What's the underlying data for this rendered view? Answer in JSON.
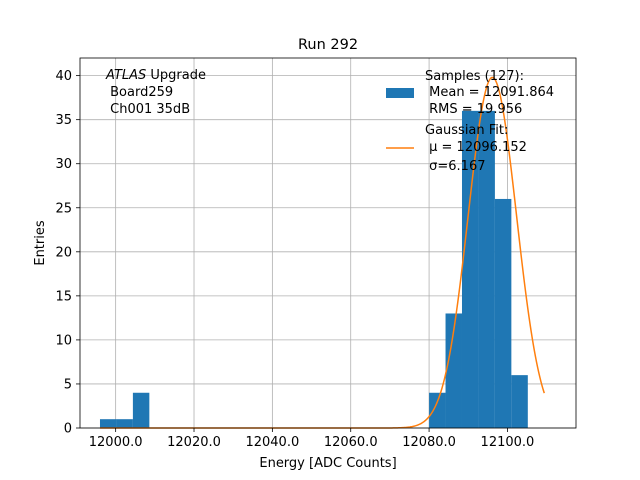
{
  "chart_data": {
    "type": "bar",
    "title": "Run 292",
    "xlabel": "Energy [ADC Counts]",
    "ylabel": "Entries",
    "xlim": [
      11990.9,
      12117.5
    ],
    "ylim": [
      0,
      42
    ],
    "grid": true,
    "x_ticks": [
      12000.0,
      12020.0,
      12040.0,
      12060.0,
      12080.0,
      12100.0
    ],
    "x_tick_labels": [
      "12000.0",
      "12020.0",
      "12040.0",
      "12060.0",
      "12080.0",
      "12100.0"
    ],
    "y_ticks": [
      0,
      5,
      10,
      15,
      20,
      25,
      30,
      35,
      40
    ],
    "y_tick_labels": [
      "0",
      "5",
      "10",
      "15",
      "20",
      "25",
      "30",
      "35",
      "40"
    ],
    "annotation": {
      "line1_italic": "ATLAS",
      "line1_rest": " Upgrade",
      "line2": " Board259",
      "line3": " Ch001 35dB"
    },
    "histogram": {
      "name": "Samples (127):",
      "color": "#1f77b4",
      "bin_edges": [
        11996.0,
        12000.2,
        12004.4,
        12008.6,
        12012.8,
        12017.0,
        12021.2,
        12025.4,
        12029.6,
        12033.8,
        12038.0,
        12042.2,
        12046.4,
        12050.6,
        12054.8,
        12059.0,
        12063.2,
        12067.4,
        12071.6,
        12075.8,
        12080.0,
        12084.2,
        12088.4,
        12092.6,
        12096.8,
        12101.0,
        12105.2,
        12109.4
      ],
      "counts": [
        1,
        1,
        4,
        0,
        0,
        0,
        0,
        0,
        0,
        0,
        0,
        0,
        0,
        0,
        0,
        0,
        0,
        0,
        0,
        0,
        4,
        13,
        36,
        36,
        26,
        6,
        0
      ]
    },
    "fit": {
      "name": "Gaussian Fit:",
      "color": "#ff7f0e",
      "amplitude": 39.8,
      "mu": 12096.152,
      "sigma": 6.167,
      "x_range": [
        11996.0,
        12109.4
      ]
    },
    "legend": {
      "position": "top-right",
      "entries": [
        {
          "series": "histogram",
          "lines": [
            "Samples (127):",
            " Mean = 12091.864",
            " RMS = 19.956"
          ]
        },
        {
          "series": "fit",
          "lines": [
            "Gaussian Fit:",
            " μ = 12096.152",
            " σ=6.167"
          ]
        }
      ]
    }
  }
}
